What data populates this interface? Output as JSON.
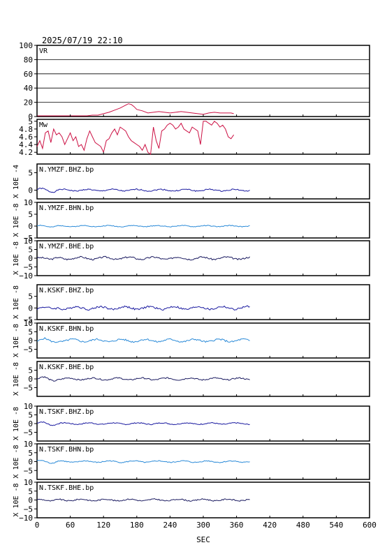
{
  "chart_data": {
    "type": "line",
    "title": "2025/07/19 22:10",
    "xlabel": "SEC",
    "xlim": [
      0,
      600
    ],
    "xticks": [
      0,
      60,
      120,
      180,
      240,
      300,
      360,
      420,
      480,
      540,
      600
    ],
    "panels": [
      {
        "label": "VR",
        "ylabel": "",
        "ylim": [
          0,
          100
        ],
        "yticks": [
          0,
          20,
          40,
          60,
          80,
          100
        ],
        "grid": true,
        "color": "#cc1144",
        "x": [
          0,
          10,
          20,
          30,
          40,
          50,
          60,
          70,
          80,
          90,
          100,
          110,
          120,
          130,
          140,
          150,
          160,
          165,
          170,
          175,
          180,
          190,
          200,
          210,
          220,
          230,
          240,
          250,
          260,
          270,
          280,
          290,
          300,
          310,
          320,
          330,
          340,
          350,
          355
        ],
        "y": [
          1,
          1,
          1,
          1,
          1,
          1,
          1,
          1,
          1,
          1,
          2,
          2,
          4,
          6,
          9,
          12,
          16,
          18,
          17,
          14,
          10,
          8,
          5,
          6,
          7,
          6,
          5,
          6,
          7,
          6,
          5,
          4,
          3,
          5,
          6,
          5,
          5,
          5,
          4
        ]
      },
      {
        "label": "Mw",
        "ylabel": "",
        "ylim": [
          4.15,
          5.05
        ],
        "yticks": [
          4.2,
          4.4,
          4.6,
          4.8,
          5.0
        ],
        "grid": false,
        "color": "#cc1144",
        "x": [
          0,
          5,
          10,
          15,
          20,
          25,
          30,
          35,
          40,
          45,
          50,
          55,
          60,
          65,
          70,
          75,
          80,
          85,
          90,
          95,
          100,
          105,
          110,
          115,
          120,
          125,
          130,
          135,
          140,
          145,
          150,
          155,
          160,
          165,
          170,
          175,
          180,
          185,
          190,
          195,
          200,
          205,
          210,
          215,
          220,
          225,
          230,
          235,
          240,
          245,
          250,
          255,
          260,
          265,
          270,
          275,
          280,
          285,
          290,
          295,
          300,
          305,
          310,
          315,
          320,
          325,
          330,
          335,
          340,
          345,
          350,
          355
        ],
        "y": [
          4.35,
          4.5,
          4.3,
          4.7,
          4.75,
          4.45,
          4.8,
          4.65,
          4.7,
          4.6,
          4.4,
          4.55,
          4.7,
          4.5,
          4.6,
          4.35,
          4.4,
          4.25,
          4.55,
          4.75,
          4.6,
          4.45,
          4.4,
          4.35,
          4.2,
          4.5,
          4.55,
          4.7,
          4.8,
          4.65,
          4.85,
          4.8,
          4.75,
          4.6,
          4.5,
          4.45,
          4.4,
          4.35,
          4.25,
          4.4,
          4.2,
          4.15,
          4.85,
          4.5,
          4.3,
          4.75,
          4.8,
          4.9,
          4.95,
          4.9,
          4.8,
          4.85,
          4.95,
          4.8,
          4.75,
          4.7,
          4.85,
          4.8,
          4.75,
          4.4,
          5.0,
          5.0,
          4.95,
          4.9,
          5.0,
          4.95,
          4.85,
          4.9,
          4.8,
          4.6,
          4.55,
          4.65
        ]
      },
      {
        "label": "N.YMZF.BHZ.bp",
        "ylabel": "X 10E -4",
        "ylim": [
          -2.5,
          7.5
        ],
        "yticks": [
          0,
          5
        ],
        "color": "#1a1aa0",
        "amp": 0.4,
        "seed": 1
      },
      {
        "label": "N.YMZF.BHN.bp",
        "ylabel": "X 10E -8",
        "ylim": [
          -5,
          10
        ],
        "yticks": [
          -5,
          0,
          5,
          10
        ],
        "color": "#2a8ad8",
        "amp": 0.4,
        "seed": 2
      },
      {
        "label": "N.YMZF.BHE.bp",
        "ylabel": "X 10E -8",
        "ylim": [
          -10,
          10
        ],
        "yticks": [
          -10,
          -5,
          0,
          5,
          10
        ],
        "color": "#1a1a60",
        "amp": 1.1,
        "seed": 3
      },
      {
        "label": "N.KSKF.BHZ.bp",
        "ylabel": "X 10E -8",
        "ylim": [
          -5,
          10
        ],
        "yticks": [
          -5,
          0,
          5
        ],
        "color": "#1a1aa0",
        "amp": 1.0,
        "seed": 4
      },
      {
        "label": "N.KSKF.BHN.bp",
        "ylabel": "X 10E -8",
        "ylim": [
          -10,
          10
        ],
        "yticks": [
          -5,
          0,
          5,
          10
        ],
        "color": "#2a8ad8",
        "amp": 1.2,
        "seed": 5
      },
      {
        "label": "N.KSKF.BHE.bp",
        "ylabel": "X 10E -8",
        "ylim": [
          -10,
          10
        ],
        "yticks": [
          -5,
          0,
          5
        ],
        "color": "#1a1a60",
        "amp": 0.9,
        "seed": 6
      },
      {
        "label": "N.TSKF.BHZ.bp",
        "ylabel": "X 10E -8",
        "ylim": [
          -10,
          10
        ],
        "yticks": [
          -5,
          0,
          5,
          10
        ],
        "color": "#1a1aa0",
        "amp": 0.7,
        "seed": 7
      },
      {
        "label": "N.TSKF.BHN.bp",
        "ylabel": "X 10E -8",
        "ylim": [
          -10,
          10
        ],
        "yticks": [
          -5,
          0,
          5,
          10
        ],
        "color": "#2a8ad8",
        "amp": 0.7,
        "seed": 8
      },
      {
        "label": "N.TSKF.BHE.bp",
        "ylabel": "X 10E -8",
        "ylim": [
          -10,
          10
        ],
        "yticks": [
          -10,
          -5,
          0,
          5,
          10
        ],
        "color": "#1a1a60",
        "amp": 0.8,
        "seed": 9
      }
    ]
  }
}
